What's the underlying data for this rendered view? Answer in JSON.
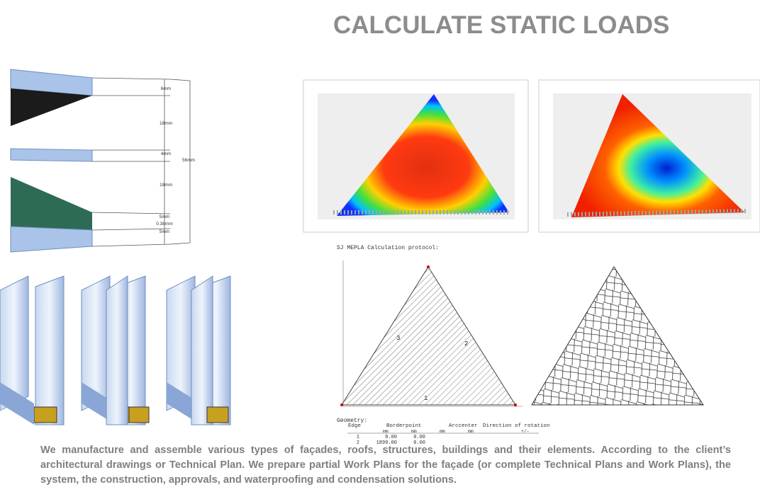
{
  "header": {
    "title": "CALCULATE STATIC LOADS"
  },
  "dimensions": {
    "labels": [
      "6mm",
      "18mm",
      "4mm",
      "18mm",
      "56mm",
      "5mm",
      "0.38mm",
      "5mm"
    ]
  },
  "protocol": {
    "title": "SJ MEPLA Calculation protocol:",
    "edges": [
      "1",
      "2",
      "3"
    ],
    "geometry": {
      "title": "Geometry:",
      "headers": [
        "Edge",
        "Borderpoint",
        "Arccenter",
        "Direction of rotation"
      ],
      "units": [
        "mm",
        "mm",
        "mm",
        "mm",
        "+/-"
      ],
      "rows": [
        [
          "1",
          "0.00",
          "0.00"
        ],
        [
          "2",
          "1899.00",
          "0.00"
        ]
      ]
    }
  },
  "body": {
    "text": "We manufacture and assemble various types of façades, roofs, structures, buildings and their elements. According to the client’s architectural drawings or Technical Plan. We prepare partial Work Plans for the façade (or complete Technical Plans and Work Plans), the system, the construction, approvals, and waterproofing and condensation solutions."
  }
}
